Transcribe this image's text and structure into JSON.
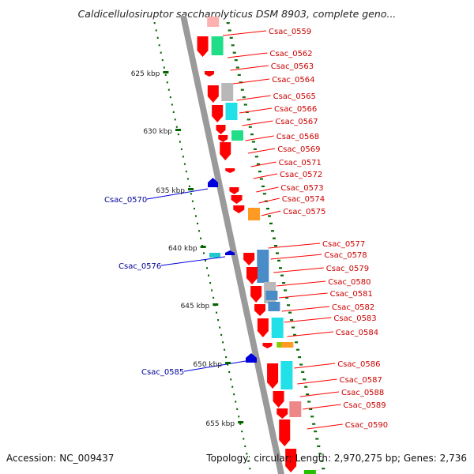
{
  "title": "Caldicellulosiruptor saccharolyticus DSM 8903, complete geno...",
  "footer": {
    "accession": "Accession: NC_009437",
    "summary": "Topology: circular; Length: 2,970,275 bp; Genes: 2,736"
  },
  "colors": {
    "forward_gene": "#ff0000",
    "reverse_gene": "#0000dd",
    "forward_label": "#cc0000",
    "reverse_label": "#000099",
    "backbone": "#9a9a9a",
    "tick": "#006600"
  },
  "scale_ticks": [
    {
      "label": "625 kbp",
      "kbp": 625
    },
    {
      "label": "630 kbp",
      "kbp": 630
    },
    {
      "label": "635 kbp",
      "kbp": 635
    },
    {
      "label": "640 kbp",
      "kbp": 640
    },
    {
      "label": "645 kbp",
      "kbp": 645
    },
    {
      "label": "650 kbp",
      "kbp": 650
    },
    {
      "label": "655 kbp",
      "kbp": 655
    }
  ],
  "forward_labels": [
    "Csac_0559",
    "Csac_0562",
    "Csac_0563",
    "Csac_0564",
    "Csac_0565",
    "Csac_0566",
    "Csac_0567",
    "Csac_0568",
    "Csac_0569",
    "Csac_0571",
    "Csac_0572",
    "Csac_0573",
    "Csac_0574",
    "Csac_0575",
    "Csac_0577",
    "Csac_0578",
    "Csac_0579",
    "Csac_0580",
    "Csac_0581",
    "Csac_0582",
    "Csac_0583",
    "Csac_0584",
    "Csac_0586",
    "Csac_0587",
    "Csac_0588",
    "Csac_0589",
    "Csac_0590"
  ],
  "reverse_labels": [
    "Csac_0570",
    "Csac_0576",
    "Csac_0585"
  ]
}
